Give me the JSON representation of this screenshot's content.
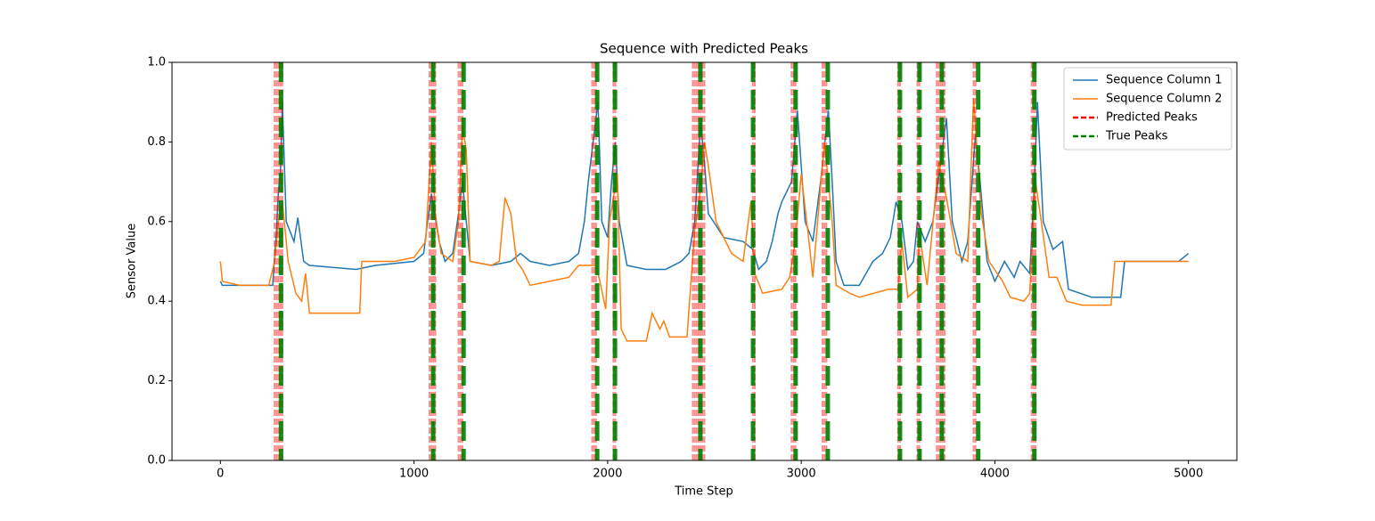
{
  "chart_data": {
    "type": "line",
    "title": "Sequence with Predicted Peaks",
    "x_label": "Time Step",
    "y_label": "Sensor Value",
    "xlim": [
      -250,
      5250
    ],
    "ylim": [
      0,
      1
    ],
    "xticks": [
      0,
      1000,
      2000,
      3000,
      4000,
      5000
    ],
    "yticks": [
      {
        "value": 0,
        "label": "0.0"
      },
      0.2,
      0.4,
      0.6,
      0.8,
      {
        "value": 1,
        "label": "1.0"
      }
    ],
    "legend": "upper right",
    "series": [
      {
        "name": "Sequence Column 1",
        "color": "#1f77b4",
        "x": [
          0,
          10,
          270,
          290,
          300,
          310,
          320,
          340,
          380,
          400,
          430,
          460,
          700,
          800,
          1000,
          1050,
          1070,
          1090,
          1130,
          1160,
          1200,
          1230,
          1250,
          1290,
          1400,
          1500,
          1550,
          1600,
          1700,
          1800,
          1850,
          1880,
          1900,
          1930,
          1950,
          1970,
          2000,
          2020,
          2040,
          2060,
          2100,
          2200,
          2300,
          2380,
          2420,
          2450,
          2480,
          2500,
          2520,
          2600,
          2700,
          2750,
          2780,
          2820,
          2850,
          2880,
          2900,
          2950,
          2980,
          3020,
          3060,
          3100,
          3140,
          3160,
          3180,
          3220,
          3300,
          3370,
          3420,
          3460,
          3490,
          3520,
          3550,
          3580,
          3600,
          3640,
          3680,
          3720,
          3750,
          3780,
          3830,
          3860,
          3900,
          3920,
          3960,
          4000,
          4050,
          4100,
          4130,
          4180,
          4200,
          4220,
          4250,
          4300,
          4350,
          4380,
          4500,
          4650,
          4670,
          4800,
          4950,
          5000
        ],
        "values": [
          0.45,
          0.44,
          0.44,
          0.58,
          0.68,
          0.72,
          0.9,
          0.6,
          0.55,
          0.61,
          0.5,
          0.49,
          0.48,
          0.49,
          0.5,
          0.52,
          0.6,
          0.67,
          0.55,
          0.5,
          0.52,
          0.62,
          0.7,
          0.5,
          0.49,
          0.5,
          0.52,
          0.5,
          0.49,
          0.5,
          0.52,
          0.6,
          0.7,
          0.82,
          0.9,
          0.6,
          0.56,
          0.7,
          0.8,
          0.6,
          0.49,
          0.48,
          0.48,
          0.5,
          0.52,
          0.6,
          0.85,
          0.75,
          0.62,
          0.56,
          0.55,
          0.53,
          0.48,
          0.5,
          0.55,
          0.62,
          0.65,
          0.7,
          0.88,
          0.6,
          0.55,
          0.7,
          0.88,
          0.7,
          0.5,
          0.44,
          0.44,
          0.5,
          0.52,
          0.56,
          0.65,
          0.6,
          0.48,
          0.5,
          0.6,
          0.55,
          0.6,
          0.75,
          0.86,
          0.6,
          0.5,
          0.55,
          0.82,
          0.72,
          0.5,
          0.45,
          0.5,
          0.46,
          0.5,
          0.47,
          0.65,
          0.9,
          0.6,
          0.53,
          0.55,
          0.43,
          0.41,
          0.41,
          0.5,
          0.5,
          0.5,
          0.52
        ]
      },
      {
        "name": "Sequence Column 2",
        "color": "#ff7f0e",
        "x": [
          0,
          10,
          100,
          250,
          280,
          300,
          320,
          350,
          390,
          420,
          440,
          460,
          600,
          720,
          730,
          900,
          1000,
          1060,
          1090,
          1110,
          1140,
          1200,
          1230,
          1250,
          1270,
          1290,
          1400,
          1440,
          1470,
          1500,
          1530,
          1560,
          1600,
          1700,
          1800,
          1850,
          1940,
          1960,
          1990,
          2010,
          2050,
          2070,
          2100,
          2200,
          2230,
          2270,
          2290,
          2320,
          2410,
          2450,
          2480,
          2500,
          2520,
          2560,
          2640,
          2700,
          2740,
          2760,
          2800,
          2900,
          2940,
          2970,
          3000,
          3040,
          3060,
          3120,
          3160,
          3180,
          3250,
          3300,
          3450,
          3500,
          3520,
          3550,
          3600,
          3610,
          3650,
          3710,
          3750,
          3800,
          3860,
          3890,
          3930,
          3970,
          4040,
          4080,
          4150,
          4180,
          4210,
          4240,
          4280,
          4320,
          4370,
          4450,
          4600,
          4620,
          5000
        ],
        "values": [
          0.5,
          0.45,
          0.44,
          0.44,
          0.5,
          0.6,
          0.65,
          0.5,
          0.42,
          0.4,
          0.47,
          0.37,
          0.37,
          0.37,
          0.5,
          0.5,
          0.51,
          0.55,
          0.8,
          0.62,
          0.52,
          0.5,
          0.6,
          0.84,
          0.78,
          0.5,
          0.49,
          0.5,
          0.66,
          0.62,
          0.5,
          0.48,
          0.44,
          0.45,
          0.46,
          0.49,
          0.49,
          0.45,
          0.38,
          0.6,
          0.72,
          0.33,
          0.3,
          0.3,
          0.37,
          0.33,
          0.35,
          0.31,
          0.31,
          0.58,
          0.68,
          0.8,
          0.74,
          0.6,
          0.52,
          0.5,
          0.65,
          0.47,
          0.42,
          0.43,
          0.46,
          0.55,
          0.72,
          0.55,
          0.46,
          0.8,
          0.6,
          0.44,
          0.42,
          0.41,
          0.43,
          0.43,
          0.55,
          0.41,
          0.43,
          0.57,
          0.44,
          0.75,
          0.66,
          0.52,
          0.5,
          0.91,
          0.62,
          0.5,
          0.45,
          0.41,
          0.4,
          0.42,
          0.7,
          0.6,
          0.46,
          0.46,
          0.4,
          0.39,
          0.39,
          0.5,
          0.5
        ]
      }
    ],
    "markers": [
      {
        "name": "Predicted Peaks",
        "color": "#ff0000",
        "x": [
          280,
          290,
          300,
          310,
          320,
          1080,
          1090,
          1100,
          1110,
          1230,
          1240,
          1250,
          1920,
          1930,
          1940,
          2030,
          2040,
          2440,
          2450,
          2460,
          2470,
          2480,
          2490,
          2500,
          2750,
          2760,
          2950,
          2960,
          2970,
          3110,
          3120,
          3130,
          3500,
          3510,
          3600,
          3610,
          3700,
          3710,
          3720,
          3730,
          3740,
          3890,
          3900,
          4190,
          4200,
          4210
        ]
      },
      {
        "name": "True Peaks",
        "color": "#008000",
        "x": [
          313,
          1099,
          1256,
          1946,
          2038,
          2479,
          2751,
          2971,
          3137,
          3510,
          3611,
          3726,
          3914,
          4204
        ]
      }
    ]
  }
}
